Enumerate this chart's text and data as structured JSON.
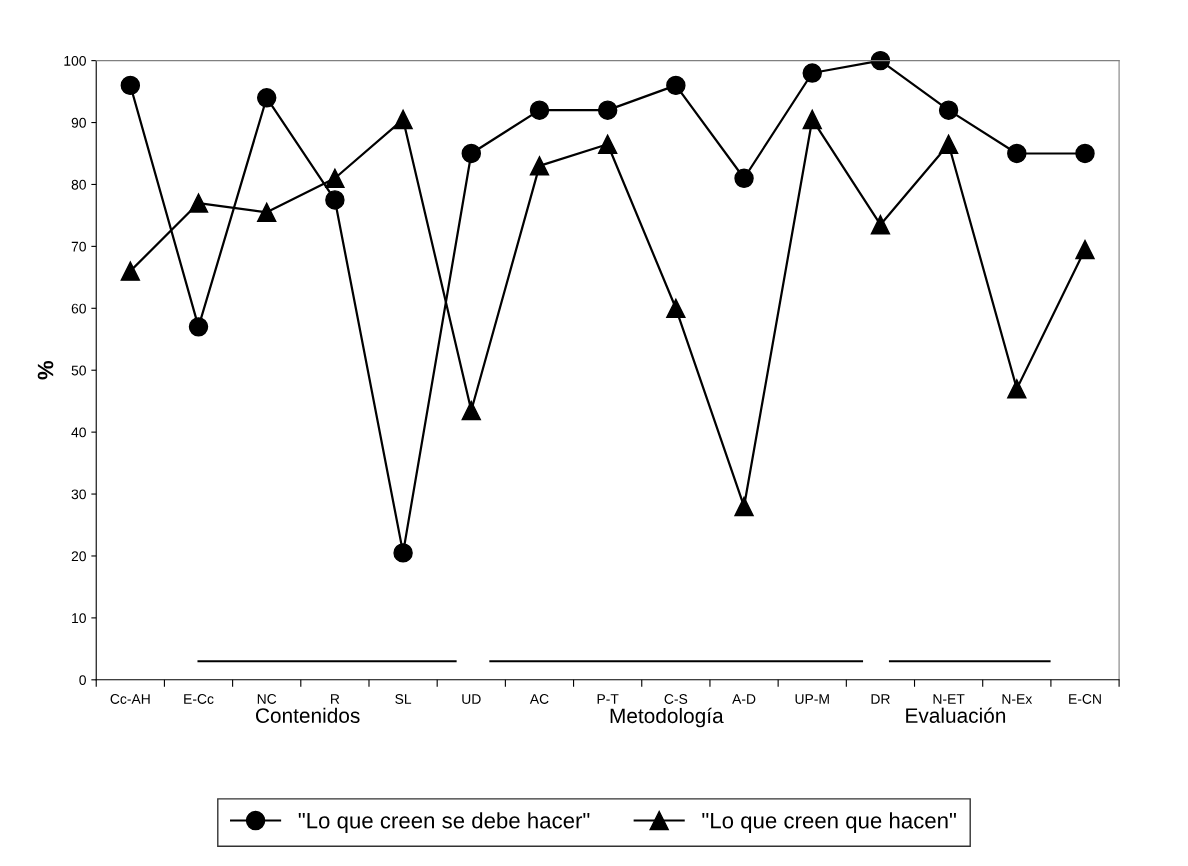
{
  "chart_data": {
    "type": "line",
    "ylabel": "%",
    "categories": [
      "Cc-AH",
      "E-Cc",
      "NC",
      "R",
      "SL",
      "UD",
      "AC",
      "P-T",
      "C-S",
      "A-D",
      "UP-M",
      "DR",
      "N-ET",
      "N-Ex",
      "E-CN"
    ],
    "series": [
      {
        "name": "\"Lo que creen se debe hacer\"",
        "color": "#000000",
        "marker": "circle",
        "values": [
          96,
          57,
          94,
          77.5,
          20.5,
          85,
          92,
          92,
          96,
          81,
          98,
          100,
          92,
          85,
          85
        ]
      },
      {
        "name": "\"Lo que creen que hacen\"",
        "color": "#000000",
        "marker": "triangle",
        "values": [
          66,
          77,
          75.5,
          81,
          90.5,
          43.5,
          83,
          86.5,
          60,
          28,
          90.5,
          73.5,
          86.5,
          47,
          69.5
        ]
      }
    ],
    "ylim": [
      0,
      100
    ],
    "yticks": [
      0,
      10,
      20,
      30,
      40,
      50,
      60,
      70,
      80,
      90,
      100
    ],
    "annotations": [
      "Contenidos",
      "Metodología",
      "Evaluación"
    ],
    "grid": false,
    "legend": "bottom",
    "line_style": "solid"
  }
}
